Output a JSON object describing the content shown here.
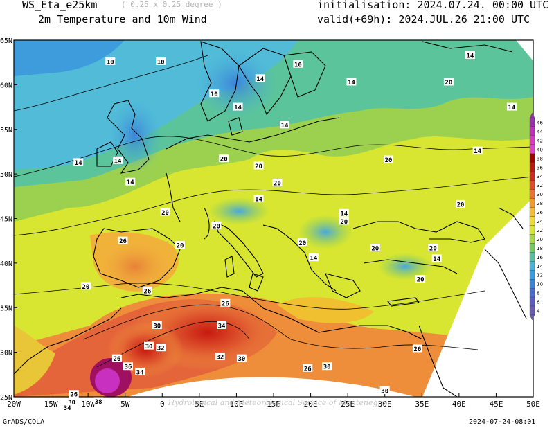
{
  "header": {
    "model": "WS_Eta_e25km",
    "resolution": "( 0.25 x 0.25 degree )",
    "field": "2m Temperature and 10m Wind",
    "initialisation": "initialisation: 2024.07.24. 00:00 UTC",
    "valid": "valid(+69h): 2024.JUL.26 21:00 UTC"
  },
  "footer": {
    "credit": "GrADS/COLA",
    "timestamp": "2024-07-24-08:01",
    "watermark": "Hydrological and Meteorological Service of Montenegro"
  },
  "axes": {
    "lon_labels": [
      "20W",
      "15W",
      "10W",
      "5W",
      "0",
      "5E",
      "10E",
      "15E",
      "20E",
      "25E",
      "30E",
      "35E",
      "40E",
      "45E",
      "50E"
    ],
    "lat_labels": [
      "65N",
      "60N",
      "55N",
      "50N",
      "45N",
      "40N",
      "35N",
      "30N",
      "25N"
    ]
  },
  "colorbar": {
    "values": [
      "46",
      "44",
      "42",
      "40",
      "38",
      "36",
      "34",
      "32",
      "30",
      "28",
      "26",
      "24",
      "22",
      "20",
      "18",
      "16",
      "14",
      "12",
      "10",
      "8",
      "6",
      "4"
    ],
    "colors": [
      "#9a2fb0",
      "#c030c0",
      "#d838c8",
      "#e040d0",
      "#a00000",
      "#b81818",
      "#d02828",
      "#e04a30",
      "#ec7038",
      "#f29a30",
      "#f5be30",
      "#f0dc30",
      "#d8e830",
      "#a8d848",
      "#78c860",
      "#58c0a0",
      "#48b4d8",
      "#389ce0",
      "#3c84d8",
      "#4a6ccc",
      "#5c5cc0",
      "#6c5cb0"
    ]
  },
  "contour_labels": [
    {
      "text": "10",
      "lon": -7,
      "lat": 62.6
    },
    {
      "text": "10",
      "lon": -0.2,
      "lat": 62.6
    },
    {
      "text": "10",
      "lon": 18.3,
      "lat": 62.3
    },
    {
      "text": "10",
      "lon": 7.0,
      "lat": 59.0
    },
    {
      "text": "14",
      "lon": 13.2,
      "lat": 60.7
    },
    {
      "text": "14",
      "lon": 25.5,
      "lat": 60.3
    },
    {
      "text": "20",
      "lon": 38.6,
      "lat": 60.3
    },
    {
      "text": "14",
      "lon": 41.5,
      "lat": 63.3
    },
    {
      "text": "14",
      "lon": 47.1,
      "lat": 57.5
    },
    {
      "text": "14",
      "lon": 10.2,
      "lat": 57.5
    },
    {
      "text": "14",
      "lon": 16.5,
      "lat": 55.5
    },
    {
      "text": "14",
      "lon": -11.3,
      "lat": 51.3
    },
    {
      "text": "14",
      "lon": -6.0,
      "lat": 51.5
    },
    {
      "text": "14",
      "lon": -4.3,
      "lat": 49.1
    },
    {
      "text": "20",
      "lon": 8.3,
      "lat": 51.7
    },
    {
      "text": "20",
      "lon": 13.0,
      "lat": 50.9
    },
    {
      "text": "20",
      "lon": 15.5,
      "lat": 49.0
    },
    {
      "text": "14",
      "lon": 13.0,
      "lat": 47.2
    },
    {
      "text": "20",
      "lon": 30.5,
      "lat": 51.6
    },
    {
      "text": "14",
      "lon": 42.5,
      "lat": 52.6
    },
    {
      "text": "20",
      "lon": 40.2,
      "lat": 46.6
    },
    {
      "text": "20",
      "lon": 0.4,
      "lat": 45.7
    },
    {
      "text": "20",
      "lon": 7.3,
      "lat": 44.2
    },
    {
      "text": "14",
      "lon": 24.5,
      "lat": 45.6
    },
    {
      "text": "20",
      "lon": 24.5,
      "lat": 44.7
    },
    {
      "text": "20",
      "lon": 2.4,
      "lat": 42.0
    },
    {
      "text": "20",
      "lon": 18.9,
      "lat": 42.3
    },
    {
      "text": "14",
      "lon": 20.4,
      "lat": 40.6
    },
    {
      "text": "20",
      "lon": 28.7,
      "lat": 41.7
    },
    {
      "text": "20",
      "lon": 36.5,
      "lat": 41.7
    },
    {
      "text": "14",
      "lon": 37.0,
      "lat": 40.5
    },
    {
      "text": "20",
      "lon": 34.8,
      "lat": 38.2
    },
    {
      "text": "26",
      "lon": -5.3,
      "lat": 42.5
    },
    {
      "text": "20",
      "lon": -10.3,
      "lat": 37.4
    },
    {
      "text": "26",
      "lon": -2.0,
      "lat": 36.9
    },
    {
      "text": "26",
      "lon": 8.5,
      "lat": 35.5
    },
    {
      "text": "30",
      "lon": -0.7,
      "lat": 33.0
    },
    {
      "text": "34",
      "lon": 8.0,
      "lat": 33.0
    },
    {
      "text": "30",
      "lon": -1.8,
      "lat": 30.7
    },
    {
      "text": "32",
      "lon": -0.2,
      "lat": 30.5
    },
    {
      "text": "32",
      "lon": 7.8,
      "lat": 29.5
    },
    {
      "text": "30",
      "lon": 10.7,
      "lat": 29.3
    },
    {
      "text": "26",
      "lon": -6.1,
      "lat": 29.3
    },
    {
      "text": "36",
      "lon": -4.6,
      "lat": 28.4
    },
    {
      "text": "34",
      "lon": -3.0,
      "lat": 27.8
    },
    {
      "text": "26",
      "lon": 19.6,
      "lat": 28.2
    },
    {
      "text": "30",
      "lon": 22.2,
      "lat": 28.4
    },
    {
      "text": "26",
      "lon": 34.4,
      "lat": 30.4
    },
    {
      "text": "30",
      "lon": 30.0,
      "lat": 25.7
    },
    {
      "text": "26",
      "lon": -11.9,
      "lat": 25.3
    },
    {
      "text": "30",
      "lon": -12.2,
      "lat": 24.4
    },
    {
      "text": "34",
      "lon": -12.8,
      "lat": 23.8
    },
    {
      "text": "38",
      "lon": -8.6,
      "lat": 24.5
    }
  ]
}
